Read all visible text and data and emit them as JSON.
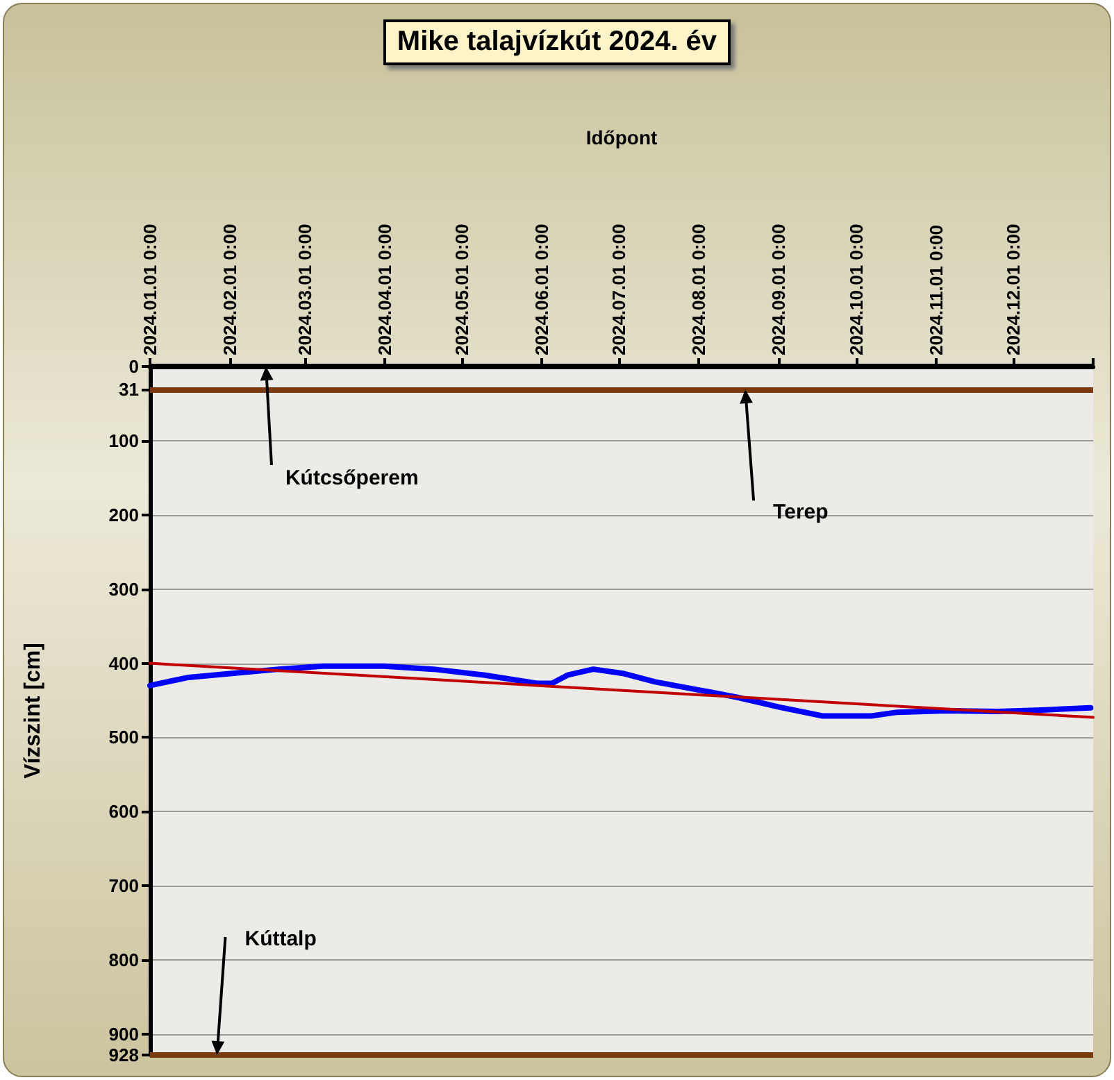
{
  "chart_data": {
    "type": "line",
    "title": "Mike talajvízkút 2024. év",
    "xlabel": "Időpont",
    "ylabel": "Vízszint [cm]",
    "xlim": [
      "2024-01-01",
      "2025-01-01"
    ],
    "xticks": [
      {
        "value": "2024-01-01",
        "label": "2024.01.01 0:00"
      },
      {
        "value": "2024-02-01",
        "label": "2024.02.01 0:00"
      },
      {
        "value": "2024-03-01",
        "label": "2024.03.01 0:00"
      },
      {
        "value": "2024-04-01",
        "label": "2024.04.01 0:00"
      },
      {
        "value": "2024-05-01",
        "label": "2024.05.01 0:00"
      },
      {
        "value": "2024-06-01",
        "label": "2024.06.01 0:00"
      },
      {
        "value": "2024-07-01",
        "label": "2024.07.01 0:00"
      },
      {
        "value": "2024-08-01",
        "label": "2024.08.01 0:00"
      },
      {
        "value": "2024-09-01",
        "label": "2024.09.01 0:00"
      },
      {
        "value": "2024-10-01",
        "label": "2024.10.01 0:00"
      },
      {
        "value": "2024-11-01",
        "label": "2024.11.01 0:00"
      },
      {
        "value": "2024-12-01",
        "label": "2024.12.01 0:00"
      },
      {
        "value": "2025-01-01",
        "label": null
      }
    ],
    "ylim": [
      928,
      0
    ],
    "yticks": [
      0,
      31,
      100,
      200,
      300,
      400,
      500,
      600,
      700,
      800,
      900,
      928
    ],
    "grid": "y",
    "marker": "none",
    "line_style": "solid",
    "series": [
      {
        "color": "#0000ff",
        "x": [
          "2024-01-01",
          "2024-01-16",
          "2024-02-01",
          "2024-02-20",
          "2024-03-08",
          "2024-04-01",
          "2024-04-20",
          "2024-05-10",
          "2024-05-30",
          "2024-06-05",
          "2024-06-11",
          "2024-06-21",
          "2024-07-03",
          "2024-07-15",
          "2024-08-01",
          "2024-08-16",
          "2024-09-01",
          "2024-09-18",
          "2024-10-07",
          "2024-10-17",
          "2024-11-05",
          "2024-11-25",
          "2024-12-12",
          "2024-12-31"
        ],
        "values": [
          430,
          419,
          414,
          408,
          404,
          404,
          408,
          416,
          427,
          427,
          416,
          408,
          414,
          425,
          436,
          446,
          459,
          471,
          471,
          466,
          464,
          465,
          463,
          460
        ]
      },
      {
        "color": "#c00000",
        "x": [
          "2024-01-01",
          "2025-01-01"
        ],
        "values": [
          400,
          473
        ]
      }
    ],
    "ref_lines": [
      {
        "axis": "y",
        "value": 0,
        "color": "#000000"
      },
      {
        "axis": "y",
        "value": 31,
        "color": "#7a3b10"
      },
      {
        "axis": "y",
        "value": 928,
        "color": "#7a3b10"
      }
    ],
    "annotations": [
      {
        "text": "Kútcsőperem",
        "x": "2024-02-15",
        "y": 0
      },
      {
        "text": "Terep",
        "x": "2024-08-19",
        "y": 31
      },
      {
        "text": "Kúttalp",
        "x": "2024-01-27",
        "y": 928
      }
    ]
  }
}
